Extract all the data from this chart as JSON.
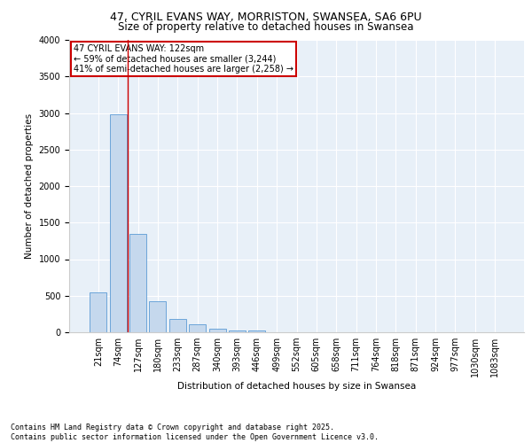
{
  "title_line1": "47, CYRIL EVANS WAY, MORRISTON, SWANSEA, SA6 6PU",
  "title_line2": "Size of property relative to detached houses in Swansea",
  "xlabel": "Distribution of detached houses by size in Swansea",
  "ylabel": "Number of detached properties",
  "bar_color": "#c5d8ed",
  "bar_edge_color": "#5b9bd5",
  "vline_color": "#cc0000",
  "vline_position": 2,
  "annotation_text": "47 CYRIL EVANS WAY: 122sqm\n← 59% of detached houses are smaller (3,244)\n41% of semi-detached houses are larger (2,258) →",
  "annotation_box_edge": "#cc0000",
  "categories": [
    "21sqm",
    "74sqm",
    "127sqm",
    "180sqm",
    "233sqm",
    "287sqm",
    "340sqm",
    "393sqm",
    "446sqm",
    "499sqm",
    "552sqm",
    "605sqm",
    "658sqm",
    "711sqm",
    "764sqm",
    "818sqm",
    "871sqm",
    "924sqm",
    "977sqm",
    "1030sqm",
    "1083sqm"
  ],
  "values": [
    550,
    2980,
    1350,
    425,
    185,
    105,
    50,
    30,
    20,
    0,
    0,
    0,
    0,
    0,
    0,
    0,
    0,
    0,
    0,
    0,
    0
  ],
  "ylim": [
    0,
    4000
  ],
  "yticks": [
    0,
    500,
    1000,
    1500,
    2000,
    2500,
    3000,
    3500,
    4000
  ],
  "background_color": "#e8f0f8",
  "footer_text": "Contains HM Land Registry data © Crown copyright and database right 2025.\nContains public sector information licensed under the Open Government Licence v3.0.",
  "title_fontsize": 9,
  "subtitle_fontsize": 8.5,
  "axis_fontsize": 7.5,
  "tick_fontsize": 7,
  "footer_fontsize": 6,
  "annotation_fontsize": 7
}
